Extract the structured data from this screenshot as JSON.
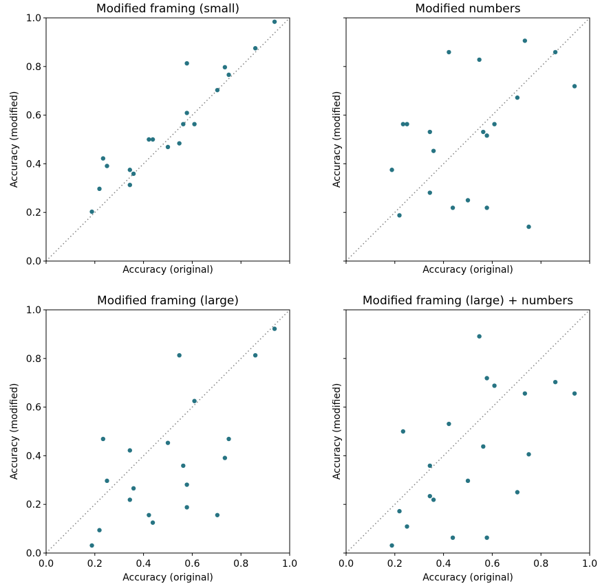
{
  "point_color": "#277483",
  "diagonal_color": "#808080",
  "chart_data": [
    {
      "type": "scatter",
      "title": "Modified framing (small)",
      "xlabel": "Accuracy (original)",
      "ylabel": "Accuracy (modified)",
      "xlim": [
        0,
        1
      ],
      "ylim": [
        0,
        1
      ],
      "x_ticks_labeled": false,
      "y_ticks_labeled": true,
      "reference_line": "y = x (dotted)",
      "x": [
        0.188,
        0.219,
        0.234,
        0.25,
        0.344,
        0.344,
        0.359,
        0.422,
        0.438,
        0.5,
        0.547,
        0.563,
        0.578,
        0.578,
        0.609,
        0.703,
        0.734,
        0.75,
        0.859,
        0.938
      ],
      "y": [
        0.203,
        0.297,
        0.422,
        0.391,
        0.375,
        0.313,
        0.359,
        0.5,
        0.5,
        0.469,
        0.484,
        0.563,
        0.813,
        0.609,
        0.563,
        0.703,
        0.797,
        0.766,
        0.875,
        0.984
      ]
    },
    {
      "type": "scatter",
      "title": "Modified numbers",
      "xlabel": "Accuracy (original)",
      "ylabel": "Accuracy (modified)",
      "xlim": [
        0,
        1
      ],
      "ylim": [
        0,
        1
      ],
      "x_ticks_labeled": false,
      "y_ticks_labeled": false,
      "reference_line": "y = x (dotted)",
      "x": [
        0.188,
        0.219,
        0.234,
        0.25,
        0.344,
        0.344,
        0.359,
        0.422,
        0.438,
        0.5,
        0.547,
        0.563,
        0.578,
        0.578,
        0.609,
        0.703,
        0.734,
        0.75,
        0.859,
        0.938
      ],
      "y": [
        0.375,
        0.188,
        0.563,
        0.563,
        0.531,
        0.281,
        0.453,
        0.859,
        0.219,
        0.25,
        0.828,
        0.531,
        0.516,
        0.219,
        0.563,
        0.672,
        0.906,
        0.141,
        0.859,
        0.719
      ]
    },
    {
      "type": "scatter",
      "title": "Modified framing (large)",
      "xlabel": "Accuracy (original)",
      "ylabel": "Accuracy (modified)",
      "xlim": [
        0,
        1
      ],
      "ylim": [
        0,
        1
      ],
      "x_ticks_labeled": true,
      "y_ticks_labeled": true,
      "reference_line": "y = x (dotted)",
      "x": [
        0.188,
        0.219,
        0.234,
        0.25,
        0.344,
        0.344,
        0.359,
        0.422,
        0.438,
        0.5,
        0.547,
        0.563,
        0.578,
        0.578,
        0.609,
        0.703,
        0.734,
        0.75,
        0.859,
        0.938
      ],
      "y": [
        0.031,
        0.094,
        0.469,
        0.297,
        0.422,
        0.219,
        0.266,
        0.156,
        0.125,
        0.453,
        0.813,
        0.359,
        0.281,
        0.188,
        0.625,
        0.156,
        0.391,
        0.469,
        0.813,
        0.922
      ]
    },
    {
      "type": "scatter",
      "title": "Modified framing (large) + numbers",
      "xlabel": "Accuracy (original)",
      "ylabel": "Accuracy (modified)",
      "xlim": [
        0,
        1
      ],
      "ylim": [
        0,
        1
      ],
      "x_ticks_labeled": true,
      "y_ticks_labeled": false,
      "reference_line": "y = x (dotted)",
      "x": [
        0.188,
        0.219,
        0.234,
        0.25,
        0.344,
        0.344,
        0.359,
        0.422,
        0.438,
        0.5,
        0.547,
        0.563,
        0.578,
        0.578,
        0.609,
        0.703,
        0.734,
        0.75,
        0.859,
        0.938
      ],
      "y": [
        0.031,
        0.172,
        0.5,
        0.109,
        0.359,
        0.234,
        0.219,
        0.531,
        0.063,
        0.297,
        0.891,
        0.438,
        0.719,
        0.063,
        0.688,
        0.25,
        0.656,
        0.406,
        0.703,
        0.656
      ]
    }
  ],
  "ticks": {
    "values": [
      0,
      0.2,
      0.4,
      0.6,
      0.8,
      1
    ],
    "labels": [
      "0.0",
      "0.2",
      "0.4",
      "0.6",
      "0.8",
      "1.0"
    ]
  }
}
